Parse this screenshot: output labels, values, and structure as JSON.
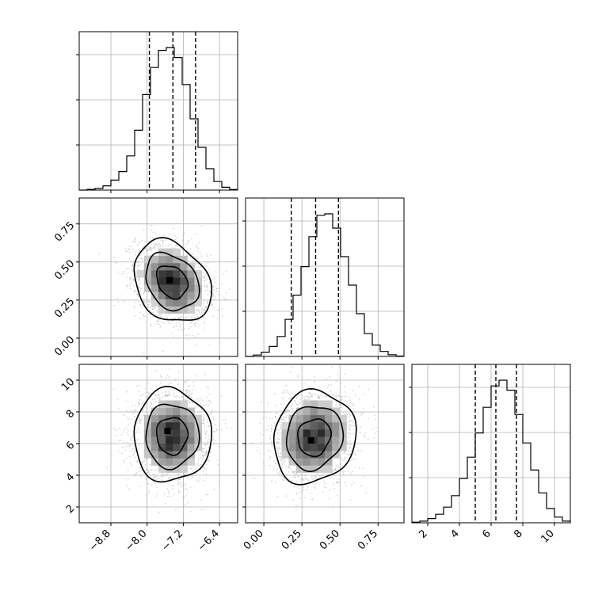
{
  "chart_data": {
    "type": "corner",
    "grid": true,
    "parameters": [
      {
        "range": [
          -9.5,
          -6.0
        ],
        "ticks": [
          -8.8,
          -8.0,
          -7.2,
          -6.4
        ],
        "tick_labels": [
          "−8.8",
          "−8.0",
          "−7.2",
          "−6.4"
        ],
        "quantiles": [
          -7.95,
          -7.43,
          -6.93
        ]
      },
      {
        "range": [
          -0.12,
          0.92
        ],
        "ticks": [
          0.0,
          0.25,
          0.5,
          0.75
        ],
        "tick_labels": [
          "0.00",
          "0.25",
          "0.50",
          "0.75"
        ],
        "quantiles": [
          0.18,
          0.34,
          0.49
        ]
      },
      {
        "range": [
          1.0,
          11.0
        ],
        "ticks": [
          2,
          4,
          6,
          8,
          10
        ],
        "tick_labels": [
          "2",
          "4",
          "6",
          "8",
          "10"
        ],
        "quantiles": [
          5.0,
          6.3,
          7.6
        ]
      }
    ],
    "histograms": [
      {
        "bin_edges": [
          -9.5,
          -9.325,
          -9.15,
          -8.975,
          -8.8,
          -8.625,
          -8.45,
          -8.275,
          -8.1,
          -7.925,
          -7.75,
          -7.575,
          -7.4,
          -7.225,
          -7.05,
          -6.875,
          -6.7,
          -6.525,
          -6.35,
          -6.175,
          -6.0
        ],
        "counts": [
          0.0,
          0.005,
          0.012,
          0.03,
          0.07,
          0.13,
          0.24,
          0.42,
          0.67,
          0.86,
          0.98,
          1.0,
          0.93,
          0.74,
          0.5,
          0.3,
          0.15,
          0.06,
          0.02,
          0.004
        ]
      },
      {
        "bin_edges": [
          -0.12,
          -0.068,
          -0.016,
          0.036,
          0.088,
          0.14,
          0.192,
          0.244,
          0.296,
          0.348,
          0.4,
          0.452,
          0.504,
          0.556,
          0.608,
          0.66,
          0.712,
          0.764,
          0.816,
          0.868,
          0.92
        ],
        "counts": [
          0.0,
          0.01,
          0.03,
          0.07,
          0.14,
          0.26,
          0.43,
          0.63,
          0.84,
          0.99,
          1.0,
          0.9,
          0.7,
          0.5,
          0.3,
          0.16,
          0.08,
          0.035,
          0.012,
          0.003
        ]
      },
      {
        "bin_edges": [
          1.0,
          1.5,
          2.0,
          2.5,
          3.0,
          3.5,
          4.0,
          4.5,
          5.0,
          5.5,
          6.0,
          6.5,
          7.0,
          7.5,
          8.0,
          8.5,
          9.0,
          9.5,
          10.0,
          10.5,
          11.0
        ],
        "counts": [
          0.004,
          0.012,
          0.03,
          0.06,
          0.11,
          0.19,
          0.31,
          0.46,
          0.63,
          0.81,
          0.96,
          1.0,
          0.93,
          0.76,
          0.56,
          0.37,
          0.21,
          0.1,
          0.04,
          0.012
        ]
      }
    ],
    "joint_2d": [
      {
        "x_param": 0,
        "y_param": 1,
        "center": [
          -7.45,
          0.37
        ],
        "sigma": [
          0.38,
          0.12
        ],
        "rho": -0.25,
        "peak": [
          -7.5,
          0.38
        ]
      },
      {
        "x_param": 0,
        "y_param": 2,
        "center": [
          -7.45,
          6.5
        ],
        "sigma": [
          0.38,
          1.3
        ],
        "rho": 0.0,
        "peak": [
          -7.55,
          6.8
        ]
      },
      {
        "x_param": 1,
        "y_param": 2,
        "center": [
          0.33,
          6.4
        ],
        "sigma": [
          0.12,
          1.3
        ],
        "rho": 0.1,
        "peak": [
          0.31,
          6.2
        ]
      }
    ]
  }
}
